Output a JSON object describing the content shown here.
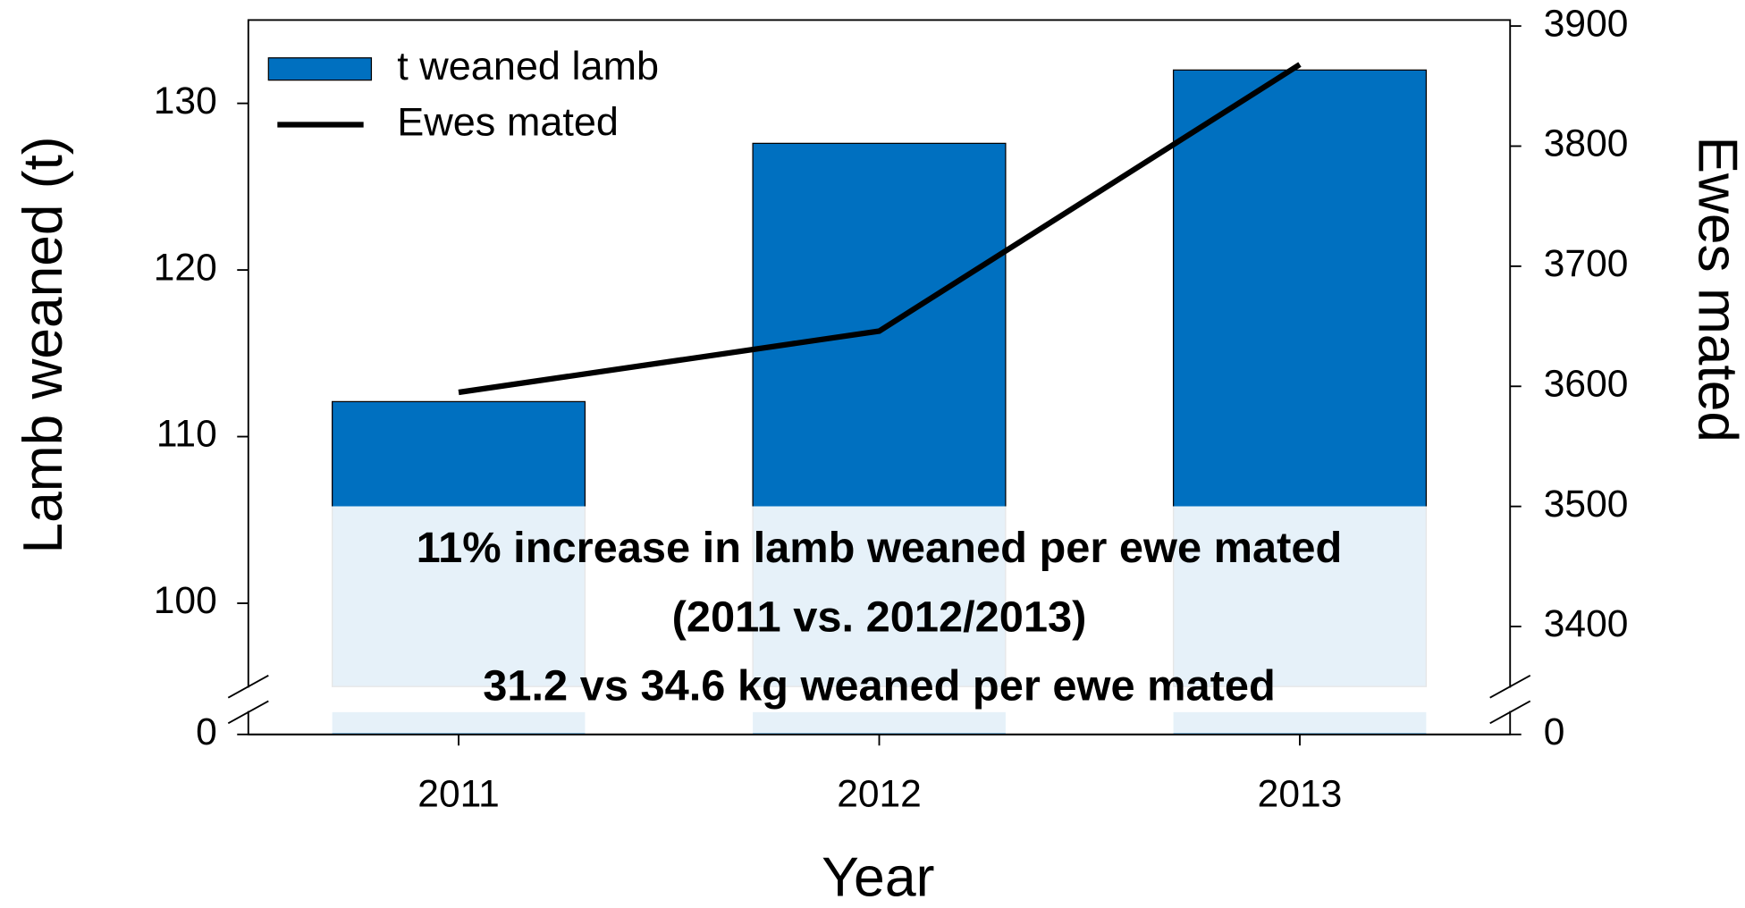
{
  "chart_data": {
    "type": "bar",
    "x_label": "Year",
    "y_label": "Lamb weaned (t)",
    "y2_label": "Ewes mated",
    "categories": [
      "2011",
      "2012",
      "2013"
    ],
    "series": [
      {
        "name": "t weaned lamb",
        "type": "bar",
        "color": "#0070c0",
        "values": [
          112.1,
          127.6,
          132.0
        ]
      },
      {
        "name": "Ewes mated",
        "type": "line",
        "axis": "y2",
        "color": "#000000",
        "values": [
          3595,
          3646,
          3868
        ]
      }
    ],
    "ylim": [
      95,
      135
    ],
    "yticks": [
      0,
      100,
      110,
      120,
      130
    ],
    "y2lim": [
      3350,
      3905
    ],
    "y2ticks": [
      0,
      3400,
      3500,
      3600,
      3700,
      3800,
      3900
    ],
    "axis_break": true,
    "legend": "upper left",
    "annotations": [
      "11% increase in lamb weaned per ewe mated",
      "(2011 vs. 2012/2013)",
      "31.2 vs 34.6 kg weaned per ewe mated"
    ]
  }
}
